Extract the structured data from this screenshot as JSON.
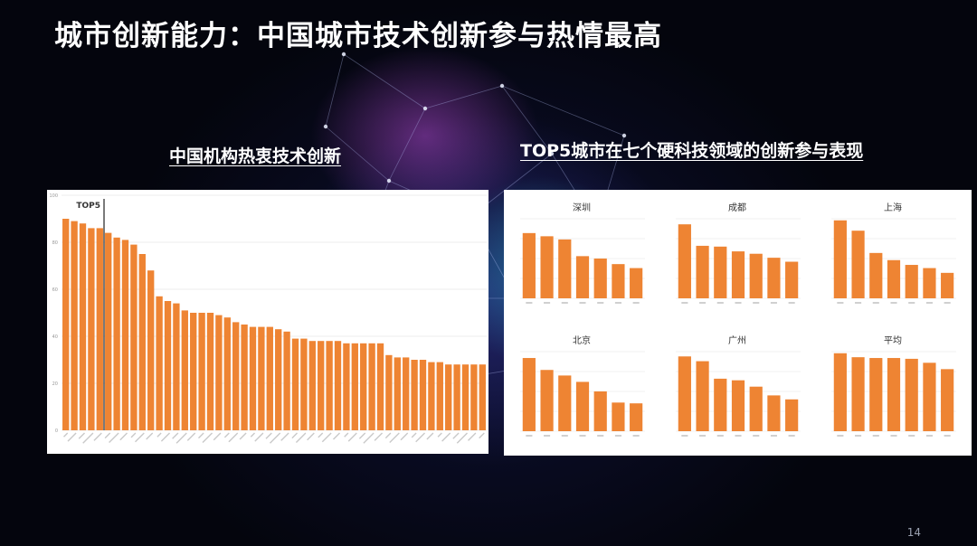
{
  "slide": {
    "title": "城市创新能力：中国城市技术创新参与热情最高",
    "page_number": "14"
  },
  "colors": {
    "bar": "#EE8433",
    "panel_bg": "#FFFFFF",
    "title": "#FFFFFF"
  },
  "left_chart": {
    "subtitle": "中国机构热衷技术创新",
    "chart_data": {
      "type": "bar",
      "annotation": "TOP5",
      "annotation_after_index": 4,
      "y_ticks": [
        "0",
        "20",
        "40",
        "60",
        "80",
        "100"
      ],
      "ylim": [
        0,
        100
      ],
      "grid": true,
      "values": [
        90,
        89,
        88,
        86,
        86,
        84,
        82,
        81,
        79,
        75,
        68,
        57,
        55,
        54,
        51,
        50,
        50,
        50,
        49,
        48,
        46,
        45,
        44,
        44,
        44,
        43,
        42,
        39,
        39,
        38,
        38,
        38,
        38,
        37,
        37,
        37,
        37,
        37,
        32,
        31,
        31,
        30,
        30,
        29,
        29,
        28,
        28,
        28,
        28,
        28
      ]
    }
  },
  "right_chart": {
    "subtitle": "TOP5城市在七个硬科技领域的创新参与表现",
    "chart_data": [
      {
        "type": "bar",
        "title": "深圳",
        "ylim": [
          0,
          100
        ],
        "values": [
          82,
          78,
          74,
          53,
          50,
          43,
          38
        ]
      },
      {
        "type": "bar",
        "title": "成都",
        "ylim": [
          0,
          100
        ],
        "values": [
          93,
          66,
          65,
          59,
          56,
          51,
          46
        ]
      },
      {
        "type": "bar",
        "title": "上海",
        "ylim": [
          0,
          100
        ],
        "values": [
          98,
          85,
          57,
          48,
          42,
          38,
          32
        ]
      },
      {
        "type": "bar",
        "title": "北京",
        "ylim": [
          0,
          100
        ],
        "values": [
          92,
          77,
          70,
          62,
          50,
          36,
          35
        ]
      },
      {
        "type": "bar",
        "title": "广州",
        "ylim": [
          0,
          100
        ],
        "values": [
          94,
          88,
          66,
          64,
          56,
          45,
          40
        ]
      },
      {
        "type": "bar",
        "title": "平均",
        "ylim": [
          0,
          100
        ],
        "values": [
          98,
          93,
          92,
          92,
          91,
          86,
          78
        ]
      }
    ]
  }
}
